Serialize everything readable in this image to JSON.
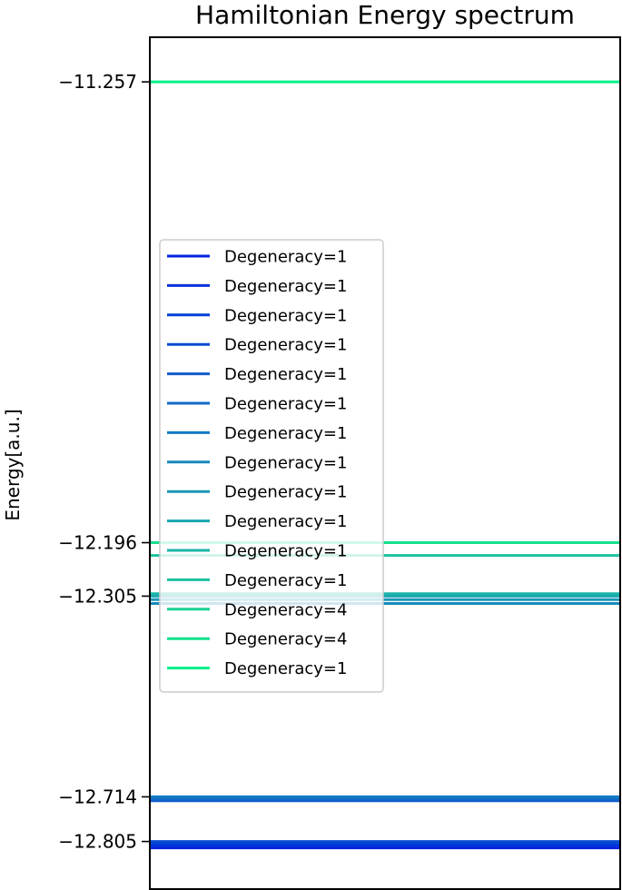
{
  "chart_data": {
    "type": "line",
    "title": "Hamiltonian Energy spectrum",
    "xlabel": "",
    "ylabel": "Energy[a.u.]",
    "ylim": [
      -12.902,
      -11.166
    ],
    "yticks": [
      -11.257,
      -12.196,
      -12.305,
      -12.714,
      -12.805
    ],
    "ytick_labels": [
      "−11.257",
      "−12.196",
      "−12.305",
      "−12.714",
      "−12.805"
    ],
    "grid": false,
    "legend_location": "center-left",
    "series": [
      {
        "name": "Degeneracy=1",
        "value": -12.818,
        "color": "#0022e0"
      },
      {
        "name": "Degeneracy=1",
        "value": -12.813,
        "color": "#0030dc"
      },
      {
        "name": "Degeneracy=1",
        "value": -12.809,
        "color": "#003ed8"
      },
      {
        "name": "Degeneracy=1",
        "value": -12.805,
        "color": "#0a4cd2"
      },
      {
        "name": "Degeneracy=1",
        "value": -12.722,
        "color": "#105ccd"
      },
      {
        "name": "Degeneracy=1",
        "value": -12.718,
        "color": "#126ac8"
      },
      {
        "name": "Degeneracy=1",
        "value": -12.714,
        "color": "#137ac2"
      },
      {
        "name": "Degeneracy=1",
        "value": -12.32,
        "color": "#1688bc"
      },
      {
        "name": "Degeneracy=1",
        "value": -12.312,
        "color": "#1a96b6"
      },
      {
        "name": "Degeneracy=1",
        "value": -12.305,
        "color": "#1aa6ae"
      },
      {
        "name": "Degeneracy=1",
        "value": -12.3,
        "color": "#1ab4a6"
      },
      {
        "name": "Degeneracy=1",
        "value": -12.222,
        "color": "#1cc29e"
      },
      {
        "name": "Degeneracy=4",
        "value": -12.196,
        "color": "#18d096"
      },
      {
        "name": "Degeneracy=4",
        "value": -12.196,
        "color": "#14e08e"
      },
      {
        "name": "Degeneracy=1",
        "value": -11.257,
        "color": "#00f288"
      }
    ]
  }
}
